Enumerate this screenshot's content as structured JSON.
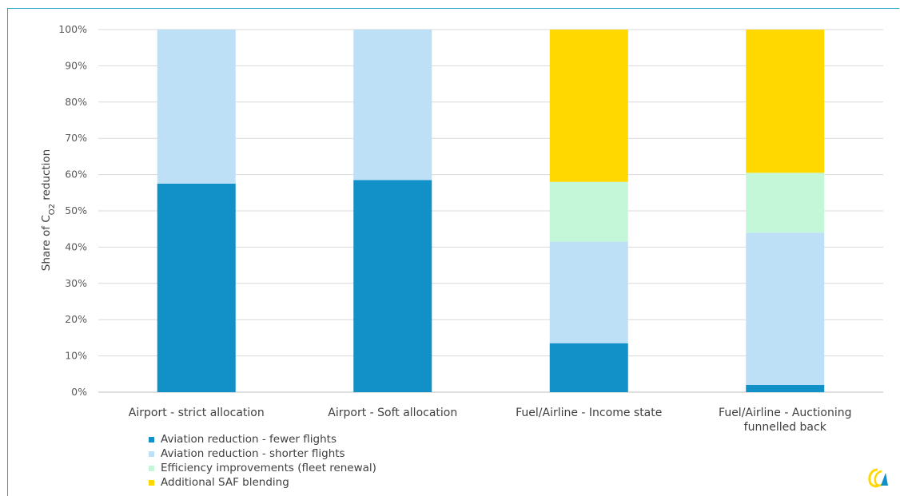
{
  "chart_data": {
    "type": "bar",
    "stacked": true,
    "title": "",
    "xlabel": "",
    "ylabel": "Share of C",
    "ylabel_subscript": "O2",
    "ylabel_suffix": " reduction",
    "ylim": [
      0,
      100
    ],
    "yticks": [
      "0%",
      "10%",
      "20%",
      "30%",
      "40%",
      "50%",
      "60%",
      "70%",
      "80%",
      "90%",
      "100%"
    ],
    "grid": true,
    "legend_position": "bottom-left",
    "categories": [
      [
        "Airport - strict allocation"
      ],
      [
        "Airport - Soft allocation"
      ],
      [
        "Fuel/Airline - Income state"
      ],
      [
        "Fuel/Airline - Auctioning",
        "funnelled back"
      ]
    ],
    "series": [
      {
        "name": "Aviation reduction - fewer flights",
        "color": "#1290c8",
        "values": [
          57.5,
          58.5,
          13.5,
          2
        ]
      },
      {
        "name": "Aviation reduction - shorter flights",
        "color": "#bde0f7",
        "values": [
          42.5,
          41.5,
          28,
          42
        ]
      },
      {
        "name": "Efficiency improvements (fleet renewal)",
        "color": "#c3f7d8",
        "values": [
          0,
          0,
          16.5,
          16.5
        ]
      },
      {
        "name": "Additional SAF blending",
        "color": "#ffd800",
        "values": [
          0,
          0,
          42,
          39.5
        ]
      }
    ]
  },
  "logo": {
    "name": "ce-delft-logo",
    "colors": [
      "#ffd800",
      "#1290c8"
    ]
  }
}
